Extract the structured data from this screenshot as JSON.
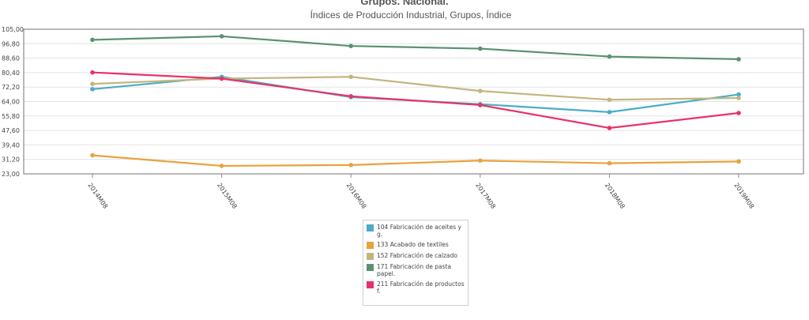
{
  "chart_data": {
    "type": "line",
    "title": "Grupos. Nacional.",
    "subtitle": "Índices de Producción Industrial, Grupos, Índice",
    "categories": [
      "2014M08",
      "2015M08",
      "2016M08",
      "2017M08",
      "2018M08",
      "2019M08"
    ],
    "ylim": [
      23.0,
      105.0
    ],
    "y_ticks": [
      "105,00",
      "96,80",
      "88,60",
      "80,40",
      "72,20",
      "64,00",
      "55,80",
      "47,60",
      "39,40",
      "31,20",
      "23,00"
    ],
    "grid": true,
    "legend_position": "bottom-center",
    "series": [
      {
        "name": "104 Fabricación de aceites y g.",
        "color": "#4bacc6",
        "values": [
          71.0,
          78.0,
          66.5,
          62.5,
          58.0,
          68.0
        ]
      },
      {
        "name": "133 Acabado de textiles",
        "color": "#e8a33d",
        "values": [
          33.5,
          27.5,
          28.0,
          30.5,
          29.0,
          30.0
        ]
      },
      {
        "name": "152 Fabricación de calzado",
        "color": "#c4b57f",
        "values": [
          74.0,
          77.0,
          78.0,
          70.0,
          65.0,
          66.0
        ]
      },
      {
        "name": "171 Fabricación de pasta papel.",
        "color": "#5b9170",
        "values": [
          99.0,
          101.0,
          95.5,
          94.0,
          89.5,
          88.0
        ]
      },
      {
        "name": "211 Fabricación de productos f.",
        "color": "#e8336a",
        "values": [
          80.5,
          77.0,
          67.0,
          62.0,
          49.0,
          57.5
        ]
      }
    ]
  }
}
